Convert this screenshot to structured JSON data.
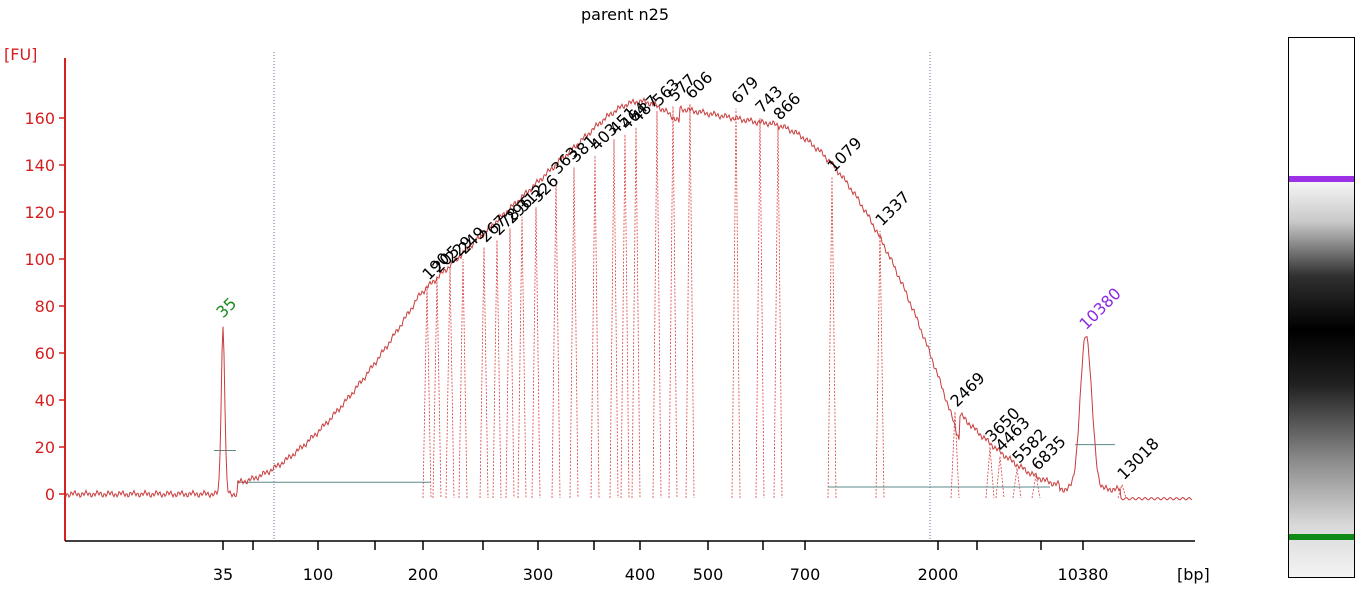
{
  "chart_data": {
    "type": "line",
    "title": "parent n25",
    "ylabel": "[FU]",
    "xlabel": "[bp]",
    "ylim": [
      -20,
      180
    ],
    "y_ticks": [
      0,
      20,
      40,
      60,
      80,
      100,
      120,
      140,
      160
    ],
    "x_tick_labels": [
      "35",
      "100",
      "200",
      "300",
      "400",
      "500",
      "700",
      "2000",
      "10380"
    ],
    "x_scale": "nonlinear (sizing ladder)",
    "grid": false,
    "colors": {
      "axis": "#d62020",
      "trace": "#c83c3c",
      "lower_marker": "#1a8a1a",
      "upper_marker": "#8a2be2",
      "peak_label": "#000000",
      "baseline": "#5a8a8a",
      "gridline_dotted": "#6070a0"
    },
    "markers": [
      {
        "label": "35",
        "size_bp": 35,
        "height_fu": 72,
        "role": "lower marker"
      },
      {
        "label": "10380",
        "size_bp": 10380,
        "height_fu": 67,
        "role": "upper marker"
      }
    ],
    "peaks": [
      {
        "label": "190",
        "height_fu": 89
      },
      {
        "label": "205",
        "height_fu": 92
      },
      {
        "label": "229",
        "height_fu": 96
      },
      {
        "label": "249",
        "height_fu": 100
      },
      {
        "label": "267",
        "height_fu": 105
      },
      {
        "label": "278",
        "height_fu": 108
      },
      {
        "label": "296",
        "height_fu": 113
      },
      {
        "label": "312",
        "height_fu": 118
      },
      {
        "label": "326",
        "height_fu": 122
      },
      {
        "label": "363",
        "height_fu": 134
      },
      {
        "label": "381",
        "height_fu": 139
      },
      {
        "label": "403",
        "height_fu": 144
      },
      {
        "label": "451",
        "height_fu": 151
      },
      {
        "label": "464",
        "height_fu": 153
      },
      {
        "label": "487",
        "height_fu": 156
      },
      {
        "label": "563",
        "height_fu": 163
      },
      {
        "label": "577",
        "height_fu": 165
      },
      {
        "label": "606",
        "height_fu": 166
      },
      {
        "label": "679",
        "height_fu": 164
      },
      {
        "label": "743",
        "height_fu": 160
      },
      {
        "label": "866",
        "height_fu": 157
      },
      {
        "label": "1079",
        "height_fu": 135
      },
      {
        "label": "1337",
        "height_fu": 112
      },
      {
        "label": "2469",
        "height_fu": 35
      },
      {
        "label": "3650",
        "height_fu": 20
      },
      {
        "label": "4463",
        "height_fu": 16
      },
      {
        "label": "5582",
        "height_fu": 11
      },
      {
        "label": "6835",
        "height_fu": 8
      },
      {
        "label": "13018",
        "height_fu": 4
      }
    ]
  }
}
